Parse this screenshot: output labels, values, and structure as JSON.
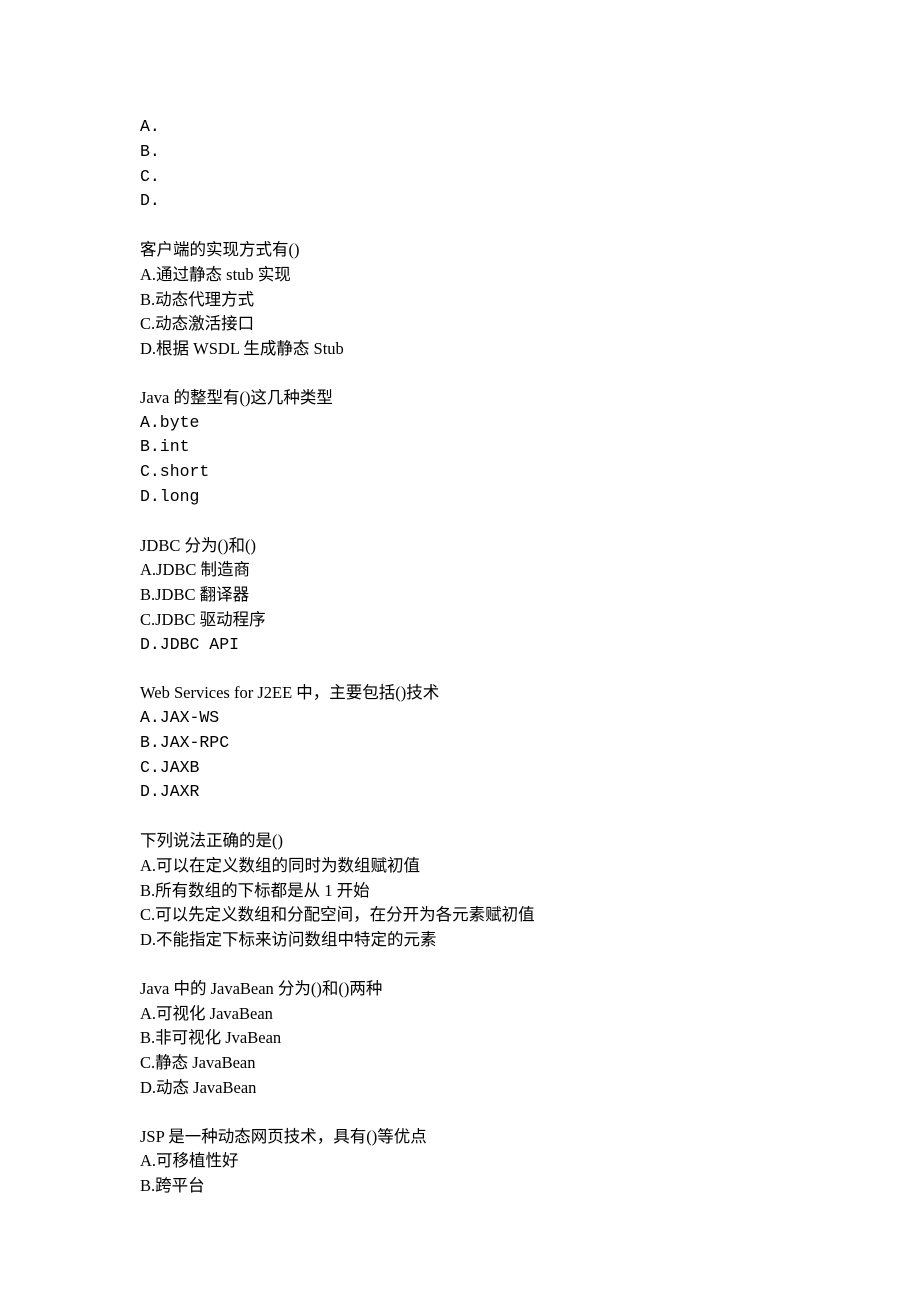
{
  "questions": [
    {
      "stem": null,
      "options": [
        "A.",
        "B.",
        "C.",
        "D."
      ]
    },
    {
      "stem": "客户端的实现方式有()",
      "options": [
        "A.通过静态 stub 实现",
        "B.动态代理方式",
        "C.动态激活接口",
        "D.根据 WSDL 生成静态 Stub"
      ]
    },
    {
      "stem": "Java 的整型有()这几种类型",
      "options": [
        "A.byte",
        "B.int",
        "C.short",
        "D.long"
      ]
    },
    {
      "stem": "JDBC 分为()和()",
      "options": [
        "A.JDBC 制造商",
        "B.JDBC 翻译器",
        "C.JDBC 驱动程序",
        "D.JDBC API"
      ]
    },
    {
      "stem": "Web Services for J2EE 中，主要包括()技术",
      "options": [
        "A.JAX-WS",
        "B.JAX-RPC",
        "C.JAXB",
        "D.JAXR"
      ]
    },
    {
      "stem": "下列说法正确的是()",
      "options": [
        "A.可以在定义数组的同时为数组赋初值",
        "B.所有数组的下标都是从 1 开始",
        "C.可以先定义数组和分配空间，在分开为各元素赋初值",
        "D.不能指定下标来访问数组中特定的元素"
      ]
    },
    {
      "stem": "Java 中的 JavaBean 分为()和()两种",
      "options": [
        "A.可视化 JavaBean",
        "B.非可视化 JvaBean",
        "C.静态 JavaBean",
        "D.动态 JavaBean"
      ]
    },
    {
      "stem": "JSP 是一种动态网页技术，具有()等优点",
      "options": [
        "A.可移植性好",
        "B.跨平台"
      ]
    }
  ]
}
